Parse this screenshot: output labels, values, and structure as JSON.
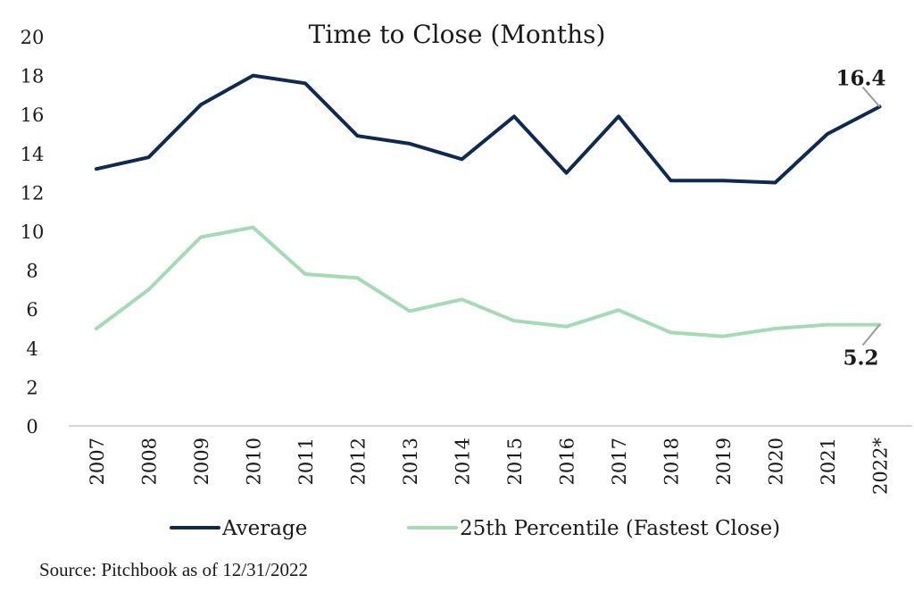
{
  "chart_data": {
    "type": "line",
    "title": "Time to Close (Months)",
    "categories": [
      "2007",
      "2008",
      "2009",
      "2010",
      "2011",
      "2012",
      "2013",
      "2014",
      "2015",
      "2016",
      "2017",
      "2018",
      "2019",
      "2020",
      "2021",
      "2022*"
    ],
    "series": [
      {
        "name": "Average",
        "color": "#0d2a52",
        "values": [
          13.2,
          13.8,
          16.5,
          18.0,
          17.6,
          14.9,
          14.5,
          13.7,
          15.9,
          13.0,
          15.9,
          12.6,
          12.6,
          12.5,
          15.0,
          16.4
        ]
      },
      {
        "name": "25th Percentile (Fastest Close)",
        "color": "#a3dbb4",
        "values": [
          5.0,
          7.0,
          9.7,
          10.2,
          7.8,
          7.6,
          5.9,
          6.5,
          5.4,
          5.1,
          5.95,
          4.8,
          4.6,
          5.0,
          5.2,
          5.2
        ]
      }
    ],
    "yticks": [
      "0",
      "2",
      "4",
      "6",
      "8",
      "10",
      "12",
      "14",
      "16",
      "18",
      "20"
    ],
    "ylim": [
      0,
      20
    ],
    "grid": false,
    "legend_position": "bottom",
    "annotations": [
      {
        "series": 0,
        "category": "2022*",
        "text": "16.4"
      },
      {
        "series": 1,
        "category": "2022*",
        "text": "5.2"
      }
    ]
  },
  "source": "Source: Pitchbook as of 12/31/2022"
}
